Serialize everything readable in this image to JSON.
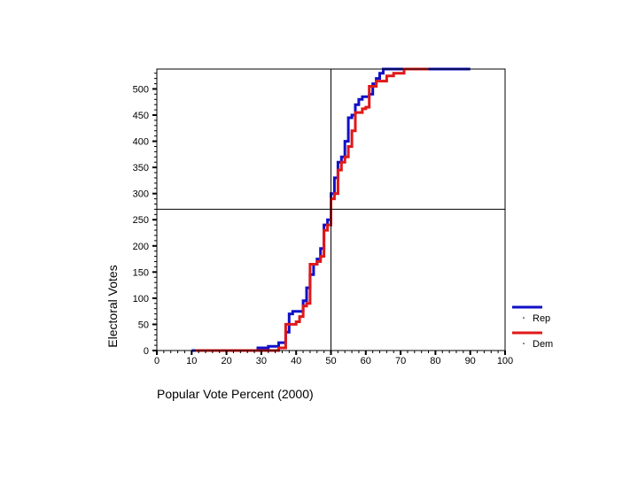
{
  "chart_data": {
    "type": "line",
    "title": "",
    "xlabel": "Popular Vote Percent  (2000)",
    "ylabel": "Electoral Votes",
    "xlim": [
      0,
      100
    ],
    "ylim": [
      0,
      538
    ],
    "x_ticks": [
      0,
      10,
      20,
      30,
      40,
      50,
      60,
      70,
      80,
      90,
      100
    ],
    "y_ticks": [
      0,
      50,
      100,
      150,
      200,
      250,
      300,
      350,
      400,
      450,
      500
    ],
    "x_tick_labels": [
      "0",
      "10",
      "20",
      "30",
      "40",
      "50",
      "60",
      "70",
      "80",
      "90",
      "100"
    ],
    "y_tick_labels": [
      "0",
      "50",
      "100",
      "150",
      "200",
      "250",
      "300",
      "350",
      "400",
      "450",
      "500"
    ],
    "reference_lines": {
      "vertical_x": 50,
      "horizontal_y": 270
    },
    "grid": false,
    "legend_position": "bottom-right",
    "colors": {
      "Rep": "#1010c8",
      "Dem": "#e01818"
    },
    "series": [
      {
        "name": "Rep",
        "points": [
          [
            10,
            0
          ],
          [
            29,
            0
          ],
          [
            29,
            5
          ],
          [
            32,
            5
          ],
          [
            32,
            8
          ],
          [
            35,
            8
          ],
          [
            35,
            15
          ],
          [
            37,
            15
          ],
          [
            37,
            35
          ],
          [
            38,
            35
          ],
          [
            38,
            70
          ],
          [
            39,
            70
          ],
          [
            39,
            75
          ],
          [
            42,
            75
          ],
          [
            42,
            95
          ],
          [
            43,
            95
          ],
          [
            43,
            120
          ],
          [
            44,
            120
          ],
          [
            44,
            145
          ],
          [
            45,
            145
          ],
          [
            45,
            165
          ],
          [
            46,
            165
          ],
          [
            46,
            175
          ],
          [
            47,
            175
          ],
          [
            47,
            195
          ],
          [
            48,
            195
          ],
          [
            48,
            240
          ],
          [
            49,
            240
          ],
          [
            49,
            250
          ],
          [
            50,
            250
          ],
          [
            50,
            300
          ],
          [
            51,
            300
          ],
          [
            51,
            330
          ],
          [
            52,
            330
          ],
          [
            52,
            360
          ],
          [
            53,
            360
          ],
          [
            53,
            370
          ],
          [
            54,
            370
          ],
          [
            54,
            400
          ],
          [
            55,
            400
          ],
          [
            55,
            445
          ],
          [
            56,
            445
          ],
          [
            56,
            450
          ],
          [
            57,
            450
          ],
          [
            57,
            470
          ],
          [
            58,
            470
          ],
          [
            58,
            480
          ],
          [
            59,
            480
          ],
          [
            59,
            485
          ],
          [
            61,
            485
          ],
          [
            61,
            490
          ],
          [
            62,
            490
          ],
          [
            62,
            510
          ],
          [
            63,
            510
          ],
          [
            63,
            520
          ],
          [
            64,
            520
          ],
          [
            64,
            530
          ],
          [
            65,
            530
          ],
          [
            65,
            538
          ],
          [
            90,
            538
          ]
        ]
      },
      {
        "name": "Dem",
        "points": [
          [
            11,
            0
          ],
          [
            35,
            0
          ],
          [
            35,
            5
          ],
          [
            37,
            5
          ],
          [
            37,
            50
          ],
          [
            40,
            50
          ],
          [
            40,
            55
          ],
          [
            41,
            55
          ],
          [
            41,
            65
          ],
          [
            42,
            65
          ],
          [
            42,
            85
          ],
          [
            43,
            85
          ],
          [
            43,
            90
          ],
          [
            44,
            90
          ],
          [
            44,
            165
          ],
          [
            46,
            165
          ],
          [
            46,
            170
          ],
          [
            47,
            170
          ],
          [
            47,
            180
          ],
          [
            48,
            180
          ],
          [
            48,
            230
          ],
          [
            49,
            230
          ],
          [
            49,
            240
          ],
          [
            50,
            240
          ],
          [
            50,
            290
          ],
          [
            51,
            290
          ],
          [
            51,
            300
          ],
          [
            52,
            300
          ],
          [
            52,
            345
          ],
          [
            53,
            345
          ],
          [
            53,
            360
          ],
          [
            54,
            360
          ],
          [
            54,
            370
          ],
          [
            55,
            370
          ],
          [
            55,
            390
          ],
          [
            56,
            390
          ],
          [
            56,
            420
          ],
          [
            57,
            420
          ],
          [
            57,
            455
          ],
          [
            59,
            455
          ],
          [
            59,
            462
          ],
          [
            60,
            462
          ],
          [
            60,
            465
          ],
          [
            61,
            465
          ],
          [
            61,
            505
          ],
          [
            63,
            505
          ],
          [
            63,
            515
          ],
          [
            66,
            515
          ],
          [
            66,
            525
          ],
          [
            68,
            525
          ],
          [
            68,
            530
          ],
          [
            71,
            530
          ],
          [
            71,
            538
          ],
          [
            78,
            538
          ]
        ]
      }
    ]
  }
}
